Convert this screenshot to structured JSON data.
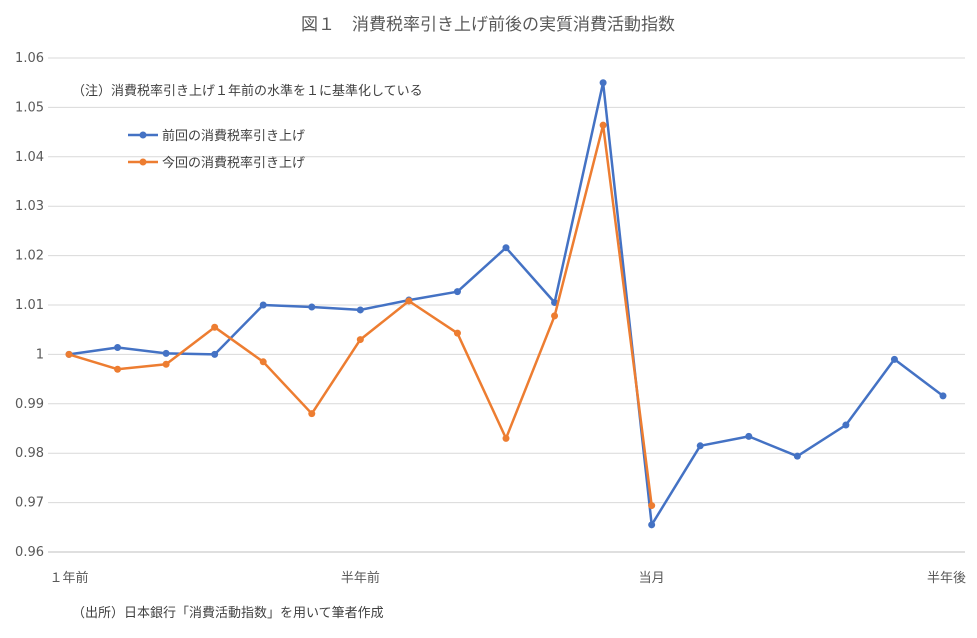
{
  "chart_data": {
    "type": "line",
    "title": "図１　消費税率引き上げ前後の実質消費活動指数",
    "note": "（注）消費税率引き上げ１年前の水準を１に基準化している",
    "source": "（出所）日本銀行「消費活動指数」を用いて筆者作成",
    "ylim": [
      0.96,
      1.06
    ],
    "yticks": [
      0.96,
      0.97,
      0.98,
      0.99,
      1,
      1.01,
      1.02,
      1.03,
      1.04,
      1.05,
      1.06
    ],
    "ytick_labels": [
      "0.96",
      "0.97",
      "0.98",
      "0.99",
      "1",
      "1.01",
      "1.02",
      "1.03",
      "1.04",
      "1.05",
      "1.06"
    ],
    "x_count": 19,
    "category_labels": [
      {
        "index": 0,
        "label": "１年前"
      },
      {
        "index": 6,
        "label": "半年前"
      },
      {
        "index": 12,
        "label": "当月"
      },
      {
        "index": 18,
        "label": "半年後"
      }
    ],
    "grid": true,
    "legend_position": "top-left",
    "series": [
      {
        "name": "前回の消費税率引き上げ",
        "color": "#4472C4",
        "values": [
          1.0,
          1.0014,
          1.0002,
          1.0,
          1.01,
          1.0096,
          1.009,
          1.011,
          1.0127,
          1.0216,
          1.0105,
          1.055,
          0.9655,
          0.9815,
          0.9834,
          0.9794,
          0.9857,
          0.999,
          0.9916
        ]
      },
      {
        "name": "今回の消費税率引き上げ",
        "color": "#ED7D31",
        "values": [
          1.0,
          0.997,
          0.998,
          1.0055,
          0.9985,
          0.988,
          1.003,
          1.0108,
          1.0043,
          0.983,
          1.0078,
          1.0464,
          0.9694
        ]
      }
    ]
  }
}
